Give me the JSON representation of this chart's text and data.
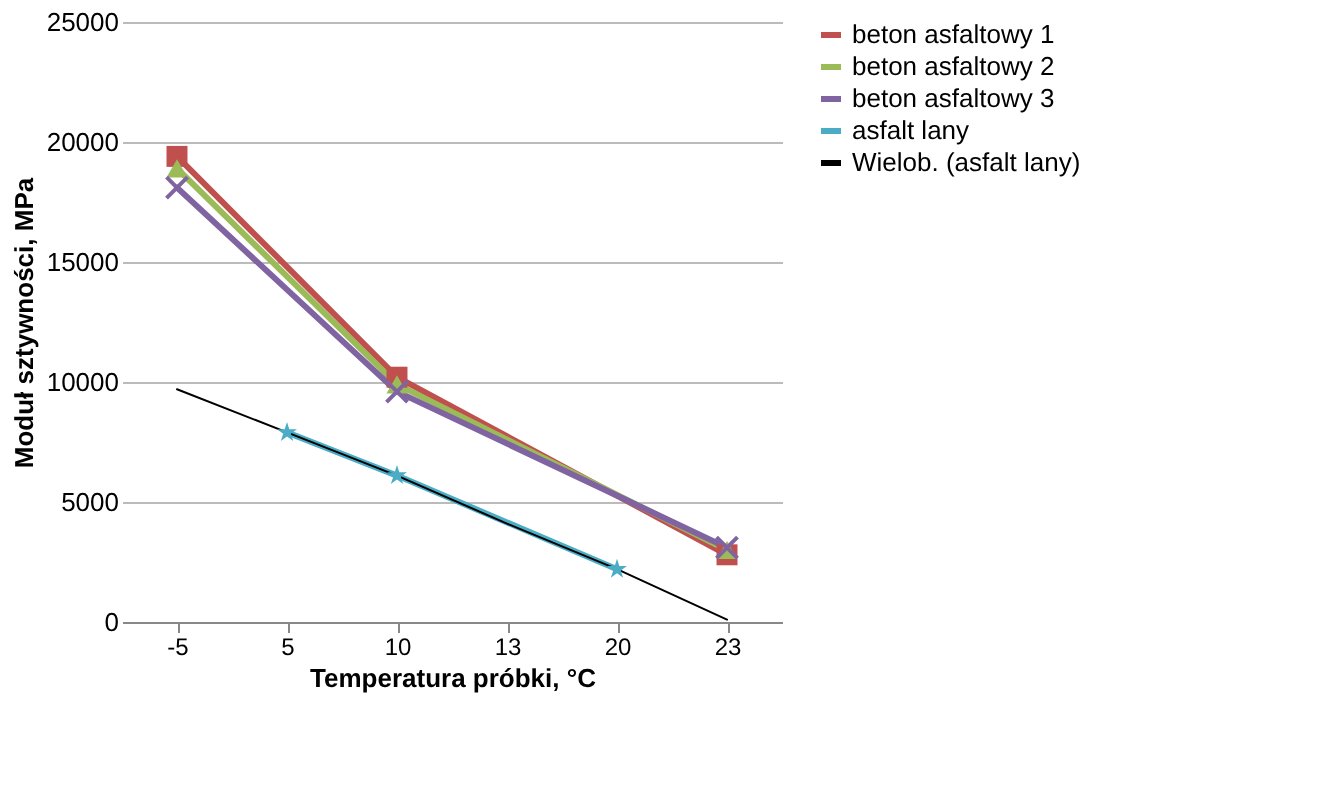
{
  "chart_data": {
    "type": "line",
    "xlabel": "Temperatura próbki, °C",
    "ylabel": "Moduł sztywności, MPa",
    "categories": [
      "-5",
      "5",
      "10",
      "13",
      "20",
      "23"
    ],
    "series": [
      {
        "name": "beton asfaltowy 1",
        "color": "#c0504d",
        "marker": "square",
        "values": [
          19400,
          null,
          10200,
          null,
          null,
          2800
        ]
      },
      {
        "name": "beton asfaltowy 2",
        "color": "#9bbb59",
        "marker": "triangle",
        "values": [
          18900,
          null,
          9900,
          null,
          null,
          3000
        ]
      },
      {
        "name": "beton asfaltowy 3",
        "color": "#8064a2",
        "marker": "cross",
        "values": [
          18100,
          null,
          9600,
          null,
          null,
          3100
        ]
      },
      {
        "name": "asfalt lany",
        "color": "#4bacc6",
        "marker": "star",
        "values": [
          null,
          7900,
          6100,
          null,
          2200,
          null
        ]
      },
      {
        "name": "Wielob. (asfalt lany)",
        "color": "#000000",
        "marker": "none",
        "values": [
          9700,
          7900,
          6100,
          4100,
          2200,
          100
        ]
      }
    ],
    "ylim": [
      0,
      25000
    ],
    "yticks": [
      0,
      5000,
      10000,
      15000,
      20000,
      25000
    ],
    "grid": "y",
    "legend": "right"
  }
}
